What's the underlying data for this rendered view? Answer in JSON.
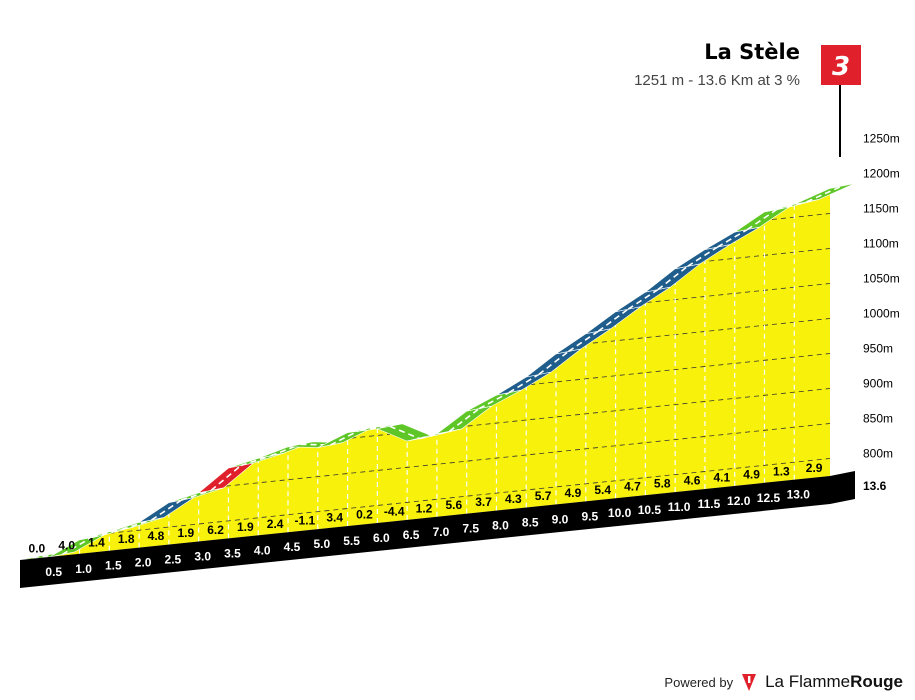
{
  "header": {
    "climb_name": "La Stèle",
    "climb_summary": "1251 m - 13.6 Km at 3 %",
    "category": "3"
  },
  "footer": {
    "powered_by": "Powered by",
    "brand_regular": "La Flamme",
    "brand_bold": "Rouge"
  },
  "chart_data": {
    "type": "area",
    "title": "La Stèle",
    "subtitle": "1251 m - 13.6 Km at 3 %",
    "x_unit": "km",
    "y_unit": "m",
    "ylim": [
      760,
      1250
    ],
    "xlim": [
      0,
      13.6
    ],
    "y_ticks": [
      {
        "value": 800,
        "label": "800m"
      },
      {
        "value": 850,
        "label": "850m"
      },
      {
        "value": 900,
        "label": "900m"
      },
      {
        "value": 950,
        "label": "950m"
      },
      {
        "value": 1000,
        "label": "1000m"
      },
      {
        "value": 1050,
        "label": "1050m"
      },
      {
        "value": 1100,
        "label": "1100m"
      },
      {
        "value": 1150,
        "label": "1150m"
      },
      {
        "value": 1200,
        "label": "1200m"
      },
      {
        "value": 1250,
        "label": "1250m"
      }
    ],
    "km_markers": [
      0.5,
      1.0,
      1.5,
      2.0,
      2.5,
      3.0,
      3.5,
      4.0,
      4.5,
      5.0,
      5.5,
      6.0,
      6.5,
      7.0,
      7.5,
      8.0,
      8.5,
      9.0,
      9.5,
      10.0,
      10.5,
      11.0,
      11.5,
      12.0,
      12.5,
      13.0
    ],
    "km_labels": [
      "0.5",
      "1.0",
      "1.5",
      "2.0",
      "2.5",
      "3.0",
      "3.5",
      "4.0",
      "4.5",
      "5.0",
      "5.5",
      "6.0",
      "6.5",
      "7.0",
      "7.5",
      "8.0",
      "8.5",
      "9.0",
      "9.5",
      "10.0",
      "10.5",
      "11.0",
      "11.5",
      "12.0",
      "12.5",
      "13.0"
    ],
    "end_label": "13.6",
    "segments": [
      {
        "from": 0.0,
        "to": 0.5,
        "gradient": "0.0"
      },
      {
        "from": 0.5,
        "to": 1.0,
        "gradient": "4.0"
      },
      {
        "from": 1.0,
        "to": 1.5,
        "gradient": "1.4"
      },
      {
        "from": 1.5,
        "to": 2.0,
        "gradient": "1.8"
      },
      {
        "from": 2.0,
        "to": 2.5,
        "gradient": "4.8"
      },
      {
        "from": 2.5,
        "to": 3.0,
        "gradient": "1.9"
      },
      {
        "from": 3.0,
        "to": 3.5,
        "gradient": "6.2"
      },
      {
        "from": 3.5,
        "to": 4.0,
        "gradient": "1.9"
      },
      {
        "from": 4.0,
        "to": 4.5,
        "gradient": "2.4"
      },
      {
        "from": 4.5,
        "to": 5.0,
        "gradient": "-1.1"
      },
      {
        "from": 5.0,
        "to": 5.5,
        "gradient": "3.4"
      },
      {
        "from": 5.5,
        "to": 6.0,
        "gradient": "0.2"
      },
      {
        "from": 6.0,
        "to": 6.5,
        "gradient": "-4.4"
      },
      {
        "from": 6.5,
        "to": 7.0,
        "gradient": "1.2"
      },
      {
        "from": 7.0,
        "to": 7.5,
        "gradient": "5.6"
      },
      {
        "from": 7.5,
        "to": 8.0,
        "gradient": "3.7"
      },
      {
        "from": 8.0,
        "to": 8.5,
        "gradient": "4.3"
      },
      {
        "from": 8.5,
        "to": 9.0,
        "gradient": "5.7"
      },
      {
        "from": 9.0,
        "to": 9.5,
        "gradient": "4.9"
      },
      {
        "from": 9.5,
        "to": 10.0,
        "gradient": "5.4"
      },
      {
        "from": 10.0,
        "to": 10.5,
        "gradient": "4.7"
      },
      {
        "from": 10.5,
        "to": 11.0,
        "gradient": "5.8"
      },
      {
        "from": 11.0,
        "to": 11.5,
        "gradient": "4.6"
      },
      {
        "from": 11.5,
        "to": 12.0,
        "gradient": "4.1"
      },
      {
        "from": 12.0,
        "to": 12.5,
        "gradient": "4.9"
      },
      {
        "from": 12.5,
        "to": 13.0,
        "gradient": "1.3"
      },
      {
        "from": 13.0,
        "to": 13.6,
        "gradient": "2.9"
      }
    ],
    "colors": {
      "fill": "#f7f10c",
      "side": "#96700a",
      "base": "#000000",
      "gentle": "#5ec626",
      "moderate": "#1f5e8c",
      "steep": "#e0202a",
      "category_flag": "#e0202a"
    }
  }
}
